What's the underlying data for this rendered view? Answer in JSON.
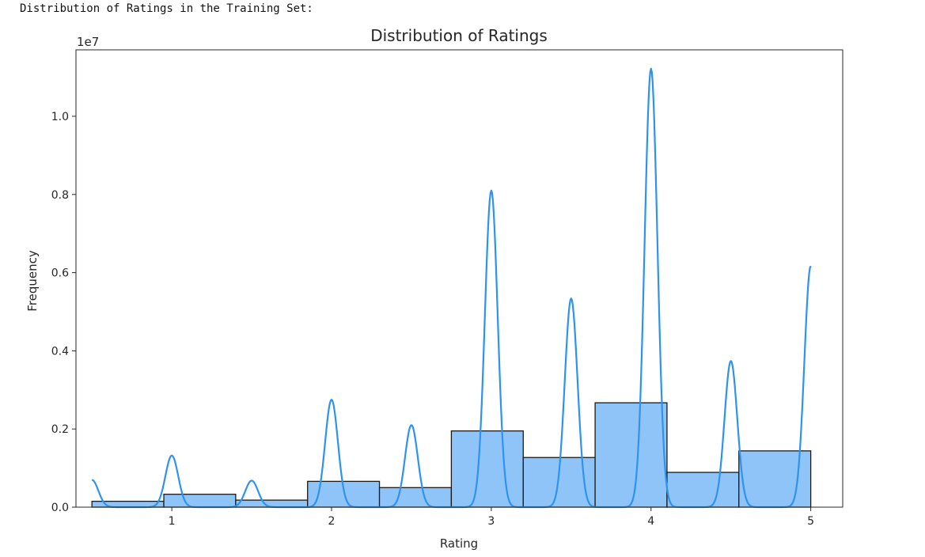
{
  "output_text": "Distribution of Ratings in the Training Set:",
  "chart_data": {
    "type": "bar",
    "title": "Distribution of Ratings",
    "xlabel": "Rating",
    "ylabel": "Frequency",
    "y_offset_label": "1e7",
    "xlim": [
      0.4,
      5.2
    ],
    "ylim": [
      0,
      11700000
    ],
    "x_ticks": [
      1,
      2,
      3,
      4,
      5
    ],
    "x_tick_labels": [
      "1",
      "2",
      "3",
      "4",
      "5"
    ],
    "y_ticks": [
      0,
      2000000,
      4000000,
      6000000,
      8000000,
      10000000
    ],
    "y_tick_labels": [
      "0.0",
      "0.2",
      "0.4",
      "0.6",
      "0.8",
      "1.0"
    ],
    "bins": [
      {
        "x0": 0.5,
        "x1": 0.95,
        "value": 150000
      },
      {
        "x0": 0.95,
        "x1": 1.4,
        "value": 330000
      },
      {
        "x0": 1.4,
        "x1": 1.85,
        "value": 180000
      },
      {
        "x0": 1.85,
        "x1": 2.3,
        "value": 660000
      },
      {
        "x0": 2.3,
        "x1": 2.75,
        "value": 500000
      },
      {
        "x0": 2.75,
        "x1": 3.2,
        "value": 1950000
      },
      {
        "x0": 3.2,
        "x1": 3.65,
        "value": 1270000
      },
      {
        "x0": 3.65,
        "x1": 4.1,
        "value": 2670000
      },
      {
        "x0": 4.1,
        "x1": 4.55,
        "value": 890000
      },
      {
        "x0": 4.55,
        "x1": 5.0,
        "value": 1440000
      }
    ],
    "kde": {
      "peaks": [
        {
          "x": 0.5,
          "value": 700000
        },
        {
          "x": 1.0,
          "value": 1320000
        },
        {
          "x": 1.5,
          "value": 680000
        },
        {
          "x": 2.0,
          "value": 2750000
        },
        {
          "x": 2.5,
          "value": 2100000
        },
        {
          "x": 3.0,
          "value": 8100000
        },
        {
          "x": 3.5,
          "value": 5340000
        },
        {
          "x": 4.0,
          "value": 11220000
        },
        {
          "x": 4.5,
          "value": 3740000
        },
        {
          "x": 5.0,
          "value": 6170000
        }
      ],
      "bandwidth": 0.04
    },
    "grid": false,
    "colors": {
      "bar_fill": "#8fc4f8",
      "bar_edge": "#1a1a1a",
      "kde_line": "#2e92ee",
      "axes": "#262626"
    }
  }
}
